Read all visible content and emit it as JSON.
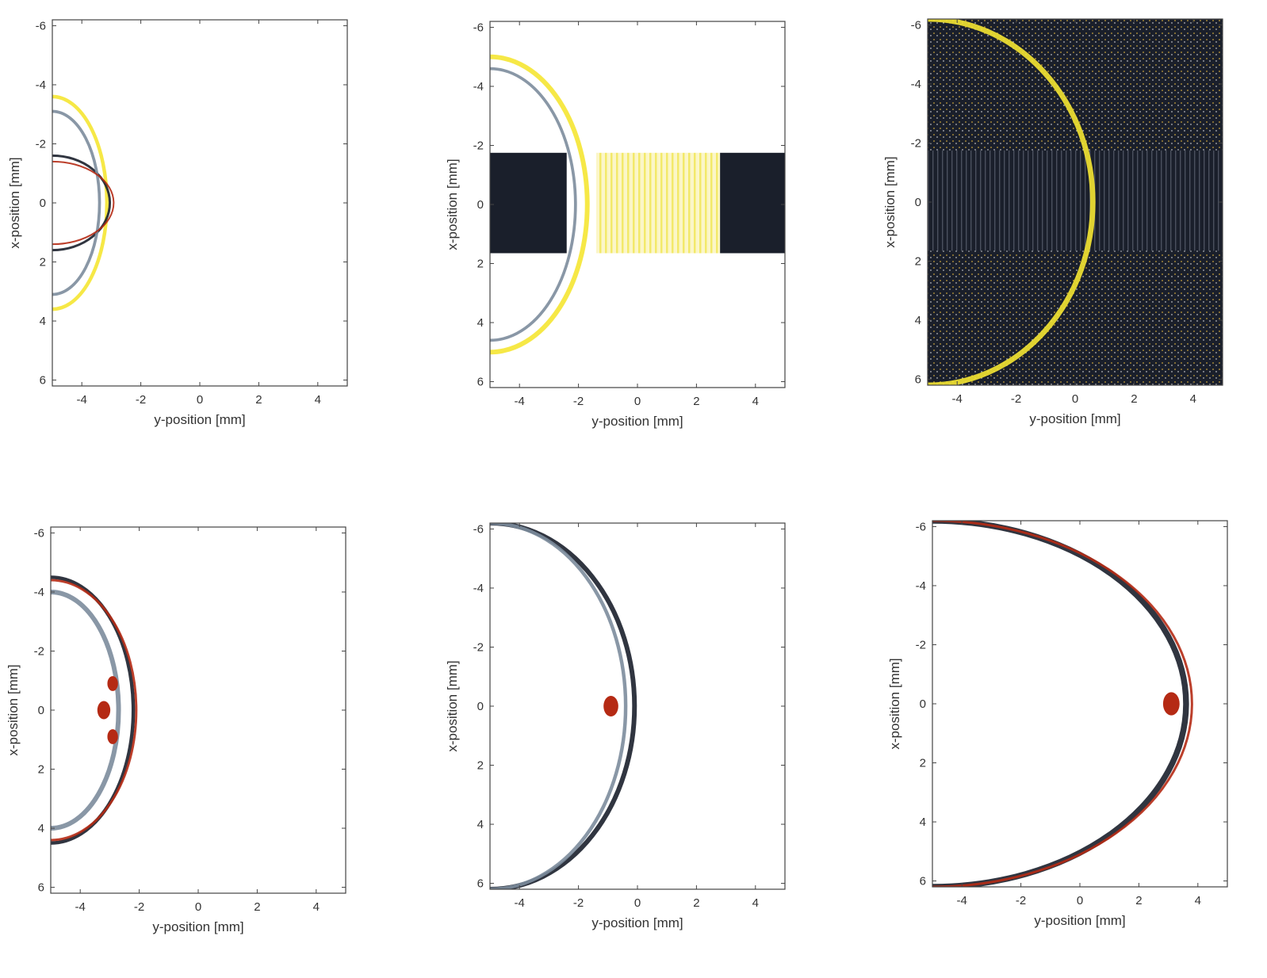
{
  "figure": {
    "colors": {
      "background": "#ffffff",
      "axes": "#444444",
      "text": "#333333",
      "dark": "#1a1f2b",
      "steel": "#7c8c9c",
      "pale": "#cfd8e0",
      "yellow": "#f5e632",
      "orange": "#e08a1e",
      "red": "#b52a14"
    },
    "colormap": "white-centred diverging: dark navy / steel grey (negative) and yellow / orange / dark red (positive)"
  },
  "chart_data": [
    {
      "type": "heatmap",
      "panel": "top-left",
      "xlabel": "y-position [mm]",
      "ylabel": "x-position [mm]",
      "xlim": [
        -5,
        5
      ],
      "ylim": [
        -6.2,
        6.2
      ],
      "y_reversed": true,
      "xticks": [
        -4,
        -2,
        0,
        2,
        4
      ],
      "yticks": [
        -6,
        -4,
        -2,
        0,
        2,
        4,
        6
      ],
      "x_tick_labels": [
        "-4",
        "-2",
        "0",
        "2",
        "4"
      ],
      "y_tick_labels": [
        "-6",
        "-4",
        "-2",
        "0",
        "2",
        "4",
        "6"
      ],
      "features": [
        {
          "kind": "wavefront",
          "center_y": -5,
          "radius": 1.85,
          "half_extent_x": 3.6,
          "tone": "yellow",
          "width": 0.12
        },
        {
          "kind": "wavefront",
          "center_y": -5,
          "radius": 1.95,
          "half_extent_x": 1.6,
          "tone": "dark",
          "width": 0.08
        },
        {
          "kind": "wavefront",
          "center_y": -5,
          "radius": 1.6,
          "half_extent_x": 3.1,
          "tone": "steel",
          "width": 0.1
        },
        {
          "kind": "wavefront",
          "center_y": -5,
          "radius": 2.08,
          "half_extent_x": 1.4,
          "tone": "red",
          "width": 0.05
        }
      ]
    },
    {
      "type": "heatmap",
      "panel": "top-middle",
      "xlabel": "y-position [mm]",
      "ylabel": "x-position [mm]",
      "xlim": [
        -5,
        5
      ],
      "ylim": [
        -6.2,
        6.2
      ],
      "y_reversed": true,
      "xticks": [
        -4,
        -2,
        0,
        2,
        4
      ],
      "yticks": [
        -6,
        -4,
        -2,
        0,
        2,
        4,
        6
      ],
      "x_tick_labels": [
        "-4",
        "-2",
        "0",
        "2",
        "4"
      ],
      "y_tick_labels": [
        "-6",
        "-4",
        "-2",
        "0",
        "2",
        "4",
        "6"
      ],
      "features": [
        {
          "kind": "band",
          "y_from": -5,
          "y_to": -2.4,
          "x_from": -1.75,
          "x_to": 1.65,
          "tone": "dark"
        },
        {
          "kind": "band",
          "y_from": -1.4,
          "y_to": 2.8,
          "x_from": -1.75,
          "x_to": 1.65,
          "tone": "yellow-light"
        },
        {
          "kind": "band",
          "y_from": 2.8,
          "y_to": 5,
          "x_from": -1.75,
          "x_to": 1.65,
          "tone": "dark"
        },
        {
          "kind": "wavefront",
          "center_y": -5,
          "radius": 3.3,
          "half_extent_x": 5,
          "tone": "yellow",
          "width": 0.16
        },
        {
          "kind": "wavefront",
          "center_y": -5,
          "radius": 2.9,
          "half_extent_x": 4.6,
          "tone": "steel",
          "width": 0.1
        }
      ]
    },
    {
      "type": "heatmap",
      "panel": "top-right",
      "xlabel": "y-position [mm]",
      "ylabel": "x-position [mm]",
      "xlim": [
        -5,
        5
      ],
      "ylim": [
        -6.2,
        6.2
      ],
      "y_reversed": true,
      "xticks": [
        -4,
        -2,
        0,
        2,
        4
      ],
      "yticks": [
        -6,
        -4,
        -2,
        0,
        2,
        4,
        6
      ],
      "x_tick_labels": [
        "-4",
        "-2",
        "0",
        "2",
        "4"
      ],
      "y_tick_labels": [
        "-6",
        "-4",
        "-2",
        "0",
        "2",
        "4",
        "6"
      ],
      "features": [
        {
          "kind": "fill",
          "tone": "dark"
        },
        {
          "kind": "band",
          "y_from": -5,
          "y_to": 5,
          "x_from": -1.75,
          "x_to": 1.65,
          "tone": "dark-striped"
        },
        {
          "kind": "wavefront",
          "center_y": -5,
          "radius": 5.6,
          "half_extent_x": 6.2,
          "tone": "yellow",
          "width": 0.18
        }
      ]
    },
    {
      "type": "heatmap",
      "panel": "bottom-left",
      "xlabel": "y-position [mm]",
      "ylabel": "x-position [mm]",
      "xlim": [
        -5,
        5
      ],
      "ylim": [
        -6.2,
        6.2
      ],
      "y_reversed": true,
      "xticks": [
        -4,
        -2,
        0,
        2,
        4
      ],
      "yticks": [
        -6,
        -4,
        -2,
        0,
        2,
        4,
        6
      ],
      "x_tick_labels": [
        "-4",
        "-2",
        "0",
        "2",
        "4"
      ],
      "y_tick_labels": [
        "-6",
        "-4",
        "-2",
        "0",
        "2",
        "4",
        "6"
      ],
      "features": [
        {
          "kind": "wavefront",
          "center_y": -5,
          "radius": 2.8,
          "half_extent_x": 4.5,
          "tone": "dark",
          "width": 0.12
        },
        {
          "kind": "wavefront",
          "center_y": -5,
          "radius": 2.9,
          "half_extent_x": 4.4,
          "tone": "red",
          "width": 0.08
        },
        {
          "kind": "wavefront",
          "center_y": -5,
          "radius": 2.3,
          "half_extent_x": 4.0,
          "tone": "steel",
          "width": 0.16
        },
        {
          "kind": "hotspot",
          "y": -3.2,
          "x": 0,
          "r": 0.22,
          "tone": "red"
        },
        {
          "kind": "hotspot",
          "y": -2.9,
          "x": -0.9,
          "r": 0.18,
          "tone": "red"
        },
        {
          "kind": "hotspot",
          "y": -2.9,
          "x": 0.9,
          "r": 0.18,
          "tone": "red"
        }
      ]
    },
    {
      "type": "heatmap",
      "panel": "bottom-middle",
      "xlabel": "y-position [mm]",
      "ylabel": "x-position [mm]",
      "xlim": [
        -5,
        5
      ],
      "ylim": [
        -6.2,
        6.2
      ],
      "y_reversed": true,
      "xticks": [
        -4,
        -2,
        0,
        2,
        4
      ],
      "yticks": [
        -6,
        -4,
        -2,
        0,
        2,
        4,
        6
      ],
      "x_tick_labels": [
        "-4",
        "-2",
        "0",
        "2",
        "4"
      ],
      "y_tick_labels": [
        "-6",
        "-4",
        "-2",
        "0",
        "2",
        "4",
        "6"
      ],
      "features": [
        {
          "kind": "wavefront",
          "center_y": -5,
          "radius": 4.9,
          "half_extent_x": 6.2,
          "tone": "dark",
          "width": 0.16
        },
        {
          "kind": "wavefront",
          "center_y": -5,
          "radius": 4.6,
          "half_extent_x": 6.2,
          "tone": "steel",
          "width": 0.12
        },
        {
          "kind": "hotspot",
          "y": -0.9,
          "x": 0,
          "r": 0.25,
          "tone": "red"
        }
      ]
    },
    {
      "type": "heatmap",
      "panel": "bottom-right",
      "xlabel": "y-position [mm]",
      "ylabel": "x-position [mm]",
      "xlim": [
        -5,
        5
      ],
      "ylim": [
        -6.2,
        6.2
      ],
      "y_reversed": true,
      "xticks": [
        -4,
        -2,
        0,
        2,
        4
      ],
      "yticks": [
        -6,
        -4,
        -2,
        0,
        2,
        4,
        6
      ],
      "x_tick_labels": [
        "-4",
        "-2",
        "0",
        "2",
        "4"
      ],
      "y_tick_labels": [
        "-6",
        "-4",
        "-2",
        "0",
        "2",
        "4",
        "6"
      ],
      "features": [
        {
          "kind": "wavefront",
          "center_y": -5,
          "radius": 8.6,
          "half_extent_x": 6.2,
          "tone": "dark",
          "width": 0.2
        },
        {
          "kind": "wavefront",
          "center_y": -5,
          "radius": 8.8,
          "half_extent_x": 6.2,
          "tone": "red",
          "width": 0.08
        },
        {
          "kind": "hotspot",
          "y": 3.1,
          "x": 0,
          "r": 0.28,
          "tone": "red"
        }
      ]
    }
  ]
}
